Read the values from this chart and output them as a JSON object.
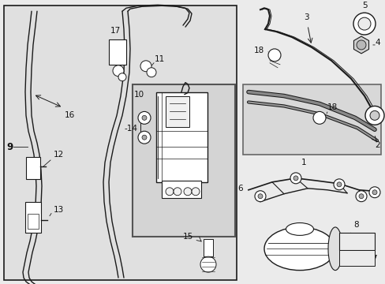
{
  "bg_color": "#ebebeb",
  "white": "#ffffff",
  "panel_bg": "#e0e0e0",
  "inset_bg": "#d4d4d4",
  "lc": "#1a1a1a",
  "tc": "#111111",
  "fig_w": 4.89,
  "fig_h": 3.6,
  "dpi": 100
}
